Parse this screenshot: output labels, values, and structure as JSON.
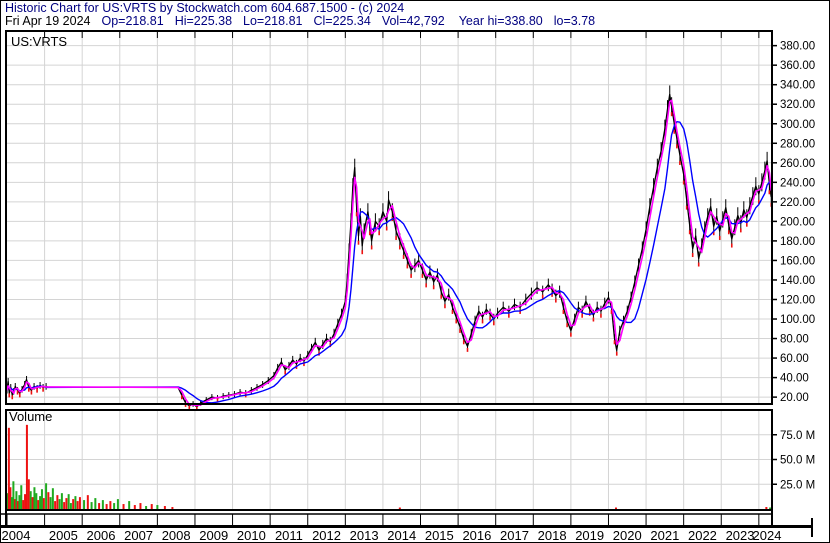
{
  "header": {
    "line1": "Historic Chart for US:VRTS by Stockwatch.com 604.687.1500 - (c) 2024",
    "line1_color": "#000080",
    "line2": {
      "date": "Fri Apr 19 2024",
      "date_color": "#000000",
      "stats": [
        "Op=218.81",
        "Hi=225.38",
        "Lo=218.81",
        "Cl=225.34",
        "Vol=42,792"
      ],
      "year_stats": [
        "Year hi=338.80",
        "lo=3.78"
      ],
      "stats_color": "#000080"
    }
  },
  "chart_data": {
    "type": "line",
    "title": "Historic Chart for US:VRTS",
    "grid_color": "#d4d4d4",
    "x_axis": {
      "xlim": [
        2004.0,
        2024.35
      ],
      "year_labels": [
        "2004",
        "2005",
        "2006",
        "2007",
        "2008",
        "2009",
        "2010",
        "2011",
        "2012",
        "2013",
        "2014",
        "2015",
        "2016",
        "2017",
        "2018",
        "2019",
        "2020",
        "2021",
        "2022",
        "2023",
        "2024"
      ]
    },
    "price_pane": {
      "label": "US:VRTS",
      "ylim": [
        15,
        395
      ],
      "ytick_values": [
        20,
        40,
        60,
        80,
        100,
        120,
        140,
        160,
        180,
        200,
        220,
        240,
        260,
        280,
        300,
        320,
        340,
        360,
        380
      ],
      "ytick_labels": [
        "20.00",
        "40.00",
        "60.00",
        "80.00",
        "100.00",
        "120.00",
        "140.00",
        "160.00",
        "180.00",
        "200.00",
        "220.00",
        "240.00",
        "260.00",
        "280.00",
        "300.00",
        "320.00",
        "340.00",
        "360.00",
        "380.00"
      ],
      "down_tick_color": "#ee1111",
      "series": [
        {
          "name": "daily-price",
          "color": "#000000",
          "points": [
            [
              2004.0,
              27
            ],
            [
              2004.03,
              36
            ],
            [
              2004.06,
              24
            ],
            [
              2004.1,
              30
            ],
            [
              2004.14,
              22
            ],
            [
              2004.18,
              26
            ],
            [
              2004.22,
              31
            ],
            [
              2004.28,
              27
            ],
            [
              2004.34,
              24
            ],
            [
              2004.4,
              28
            ],
            [
              2004.47,
              33
            ],
            [
              2004.52,
              38
            ],
            [
              2004.58,
              30
            ],
            [
              2004.65,
              27
            ],
            [
              2004.72,
              31
            ],
            [
              2004.8,
              29
            ],
            [
              2004.88,
              32
            ],
            [
              2004.96,
              30
            ],
            [
              2005.04,
              31
            ],
            [
              2005.1,
              30
            ],
            [
              2008.55,
              30
            ],
            [
              2008.65,
              22
            ],
            [
              2008.75,
              14
            ],
            [
              2008.85,
              11
            ],
            [
              2008.95,
              13
            ],
            [
              2009.05,
              10
            ],
            [
              2009.15,
              14
            ],
            [
              2009.3,
              17
            ],
            [
              2009.45,
              20
            ],
            [
              2009.6,
              19
            ],
            [
              2009.75,
              21
            ],
            [
              2009.9,
              22
            ],
            [
              2010.05,
              23
            ],
            [
              2010.2,
              25
            ],
            [
              2010.35,
              24
            ],
            [
              2010.5,
              27
            ],
            [
              2010.65,
              30
            ],
            [
              2010.8,
              33
            ],
            [
              2010.95,
              37
            ],
            [
              2011.1,
              42
            ],
            [
              2011.2,
              50
            ],
            [
              2011.3,
              56
            ],
            [
              2011.4,
              48
            ],
            [
              2011.5,
              52
            ],
            [
              2011.6,
              58
            ],
            [
              2011.7,
              54
            ],
            [
              2011.8,
              60
            ],
            [
              2011.9,
              57
            ],
            [
              2012.0,
              63
            ],
            [
              2012.1,
              70
            ],
            [
              2012.2,
              76
            ],
            [
              2012.3,
              68
            ],
            [
              2012.4,
              74
            ],
            [
              2012.5,
              80
            ],
            [
              2012.6,
              77
            ],
            [
              2012.7,
              85
            ],
            [
              2012.8,
              95
            ],
            [
              2012.9,
              105
            ],
            [
              2013.0,
              118
            ],
            [
              2013.05,
              140
            ],
            [
              2013.1,
              170
            ],
            [
              2013.15,
              200
            ],
            [
              2013.2,
              235
            ],
            [
              2013.25,
              255
            ],
            [
              2013.3,
              215
            ],
            [
              2013.35,
              185
            ],
            [
              2013.4,
              205
            ],
            [
              2013.45,
              175
            ],
            [
              2013.5,
              190
            ],
            [
              2013.6,
              210
            ],
            [
              2013.65,
              195
            ],
            [
              2013.7,
              180
            ],
            [
              2013.8,
              200
            ],
            [
              2013.9,
              195
            ],
            [
              2014.0,
              210
            ],
            [
              2014.1,
              200
            ],
            [
              2014.15,
              222
            ],
            [
              2014.25,
              210
            ],
            [
              2014.35,
              190
            ],
            [
              2014.45,
              180
            ],
            [
              2014.55,
              170
            ],
            [
              2014.65,
              160
            ],
            [
              2014.75,
              150
            ],
            [
              2014.85,
              155
            ],
            [
              2014.95,
              160
            ],
            [
              2015.05,
              150
            ],
            [
              2015.15,
              140
            ],
            [
              2015.25,
              148
            ],
            [
              2015.35,
              138
            ],
            [
              2015.45,
              145
            ],
            [
              2015.55,
              128
            ],
            [
              2015.65,
              118
            ],
            [
              2015.75,
              125
            ],
            [
              2015.85,
              112
            ],
            [
              2015.95,
              102
            ],
            [
              2016.05,
              92
            ],
            [
              2016.15,
              80
            ],
            [
              2016.25,
              72
            ],
            [
              2016.35,
              85
            ],
            [
              2016.45,
              98
            ],
            [
              2016.55,
              108
            ],
            [
              2016.65,
              102
            ],
            [
              2016.75,
              110
            ],
            [
              2016.85,
              105
            ],
            [
              2016.95,
              100
            ],
            [
              2017.05,
              106
            ],
            [
              2017.2,
              112
            ],
            [
              2017.35,
              108
            ],
            [
              2017.5,
              115
            ],
            [
              2017.65,
              112
            ],
            [
              2017.8,
              120
            ],
            [
              2017.95,
              126
            ],
            [
              2018.1,
              132
            ],
            [
              2018.25,
              128
            ],
            [
              2018.4,
              135
            ],
            [
              2018.5,
              130
            ],
            [
              2018.6,
              124
            ],
            [
              2018.7,
              128
            ],
            [
              2018.8,
              112
            ],
            [
              2018.9,
              98
            ],
            [
              2019.0,
              88
            ],
            [
              2019.1,
              100
            ],
            [
              2019.2,
              112
            ],
            [
              2019.3,
              108
            ],
            [
              2019.4,
              118
            ],
            [
              2019.5,
              110
            ],
            [
              2019.6,
              104
            ],
            [
              2019.7,
              112
            ],
            [
              2019.8,
              108
            ],
            [
              2019.9,
              116
            ],
            [
              2020.0,
              122
            ],
            [
              2020.08,
              112
            ],
            [
              2020.16,
              80
            ],
            [
              2020.22,
              68
            ],
            [
              2020.3,
              88
            ],
            [
              2020.4,
              98
            ],
            [
              2020.5,
              108
            ],
            [
              2020.6,
              122
            ],
            [
              2020.7,
              138
            ],
            [
              2020.8,
              155
            ],
            [
              2020.9,
              172
            ],
            [
              2021.0,
              192
            ],
            [
              2021.1,
              215
            ],
            [
              2021.2,
              235
            ],
            [
              2021.3,
              255
            ],
            [
              2021.4,
              272
            ],
            [
              2021.5,
              295
            ],
            [
              2021.57,
              315
            ],
            [
              2021.63,
              330
            ],
            [
              2021.68,
              318
            ],
            [
              2021.75,
              300
            ],
            [
              2021.82,
              285
            ],
            [
              2021.9,
              268
            ],
            [
              2022.0,
              248
            ],
            [
              2022.08,
              222
            ],
            [
              2022.16,
              196
            ],
            [
              2022.24,
              172
            ],
            [
              2022.32,
              185
            ],
            [
              2022.4,
              162
            ],
            [
              2022.48,
              175
            ],
            [
              2022.56,
              192
            ],
            [
              2022.64,
              205
            ],
            [
              2022.72,
              215
            ],
            [
              2022.8,
              195
            ],
            [
              2022.88,
              205
            ],
            [
              2022.96,
              190
            ],
            [
              2023.04,
              202
            ],
            [
              2023.12,
              214
            ],
            [
              2023.2,
              196
            ],
            [
              2023.28,
              182
            ],
            [
              2023.36,
              194
            ],
            [
              2023.44,
              206
            ],
            [
              2023.52,
              198
            ],
            [
              2023.6,
              212
            ],
            [
              2023.68,
              204
            ],
            [
              2023.76,
              216
            ],
            [
              2023.84,
              226
            ],
            [
              2023.92,
              236
            ],
            [
              2024.0,
              228
            ],
            [
              2024.08,
              240
            ],
            [
              2024.16,
              252
            ],
            [
              2024.22,
              262
            ],
            [
              2024.28,
              238
            ],
            [
              2024.33,
              225
            ]
          ]
        },
        {
          "name": "fast-moving-average",
          "color": "#ff00ff",
          "derived_from": "daily-price",
          "trailing_window": 2
        },
        {
          "name": "slow-moving-average",
          "color": "#0000ff",
          "derived_from": "daily-price",
          "trailing_window": 7
        }
      ]
    },
    "volume_pane": {
      "label": "Volume",
      "unit": "millions",
      "ylim": [
        0,
        100
      ],
      "ytick_values": [
        25,
        50,
        75
      ],
      "ytick_labels": [
        "25.0 M",
        "50.0 M",
        "75.0 M"
      ],
      "bar_colors": {
        "r": "#ee1111",
        "g": "#1faa1f"
      },
      "bars": [
        [
          2004.02,
          16,
          "g"
        ],
        [
          2004.05,
          82,
          "r"
        ],
        [
          2004.09,
          22,
          "r"
        ],
        [
          2004.13,
          12,
          "g"
        ],
        [
          2004.17,
          28,
          "g"
        ],
        [
          2004.21,
          10,
          "r"
        ],
        [
          2004.25,
          18,
          "g"
        ],
        [
          2004.29,
          8,
          "r"
        ],
        [
          2004.33,
          14,
          "g"
        ],
        [
          2004.38,
          24,
          "g"
        ],
        [
          2004.43,
          9,
          "r"
        ],
        [
          2004.48,
          15,
          "r"
        ],
        [
          2004.53,
          85,
          "r"
        ],
        [
          2004.58,
          30,
          "r"
        ],
        [
          2004.63,
          18,
          "g"
        ],
        [
          2004.68,
          12,
          "r"
        ],
        [
          2004.73,
          22,
          "g"
        ],
        [
          2004.78,
          16,
          "g"
        ],
        [
          2004.83,
          9,
          "r"
        ],
        [
          2004.88,
          13,
          "g"
        ],
        [
          2004.93,
          20,
          "g"
        ],
        [
          2004.98,
          11,
          "r"
        ],
        [
          2005.04,
          26,
          "g"
        ],
        [
          2005.1,
          17,
          "r"
        ],
        [
          2005.16,
          12,
          "g"
        ],
        [
          2005.22,
          21,
          "g"
        ],
        [
          2005.28,
          8,
          "r"
        ],
        [
          2005.34,
          14,
          "r"
        ],
        [
          2005.4,
          10,
          "g"
        ],
        [
          2005.46,
          16,
          "g"
        ],
        [
          2005.52,
          7,
          "r"
        ],
        [
          2005.58,
          11,
          "r"
        ],
        [
          2005.64,
          15,
          "g"
        ],
        [
          2005.7,
          6,
          "g"
        ],
        [
          2005.76,
          10,
          "r"
        ],
        [
          2005.82,
          13,
          "g"
        ],
        [
          2005.88,
          8,
          "r"
        ],
        [
          2005.94,
          12,
          "r"
        ],
        [
          2006.05,
          9,
          "g"
        ],
        [
          2006.15,
          14,
          "r"
        ],
        [
          2006.25,
          7,
          "g"
        ],
        [
          2006.35,
          11,
          "g"
        ],
        [
          2006.45,
          6,
          "r"
        ],
        [
          2006.55,
          9,
          "g"
        ],
        [
          2006.65,
          5,
          "r"
        ],
        [
          2006.75,
          8,
          "r"
        ],
        [
          2006.85,
          6,
          "g"
        ],
        [
          2006.95,
          10,
          "g"
        ],
        [
          2007.1,
          5,
          "r"
        ],
        [
          2007.25,
          8,
          "g"
        ],
        [
          2007.4,
          4,
          "r"
        ],
        [
          2007.55,
          6,
          "r"
        ],
        [
          2007.7,
          3,
          "g"
        ],
        [
          2007.85,
          5,
          "r"
        ],
        [
          2008.0,
          4,
          "g"
        ],
        [
          2008.2,
          3,
          "r"
        ],
        [
          2008.4,
          2,
          "r"
        ],
        [
          2014.45,
          1.5,
          "r"
        ],
        [
          2020.2,
          1.5,
          "r"
        ],
        [
          2024.2,
          2,
          "r"
        ],
        [
          2024.3,
          1.5,
          "g"
        ]
      ]
    }
  }
}
